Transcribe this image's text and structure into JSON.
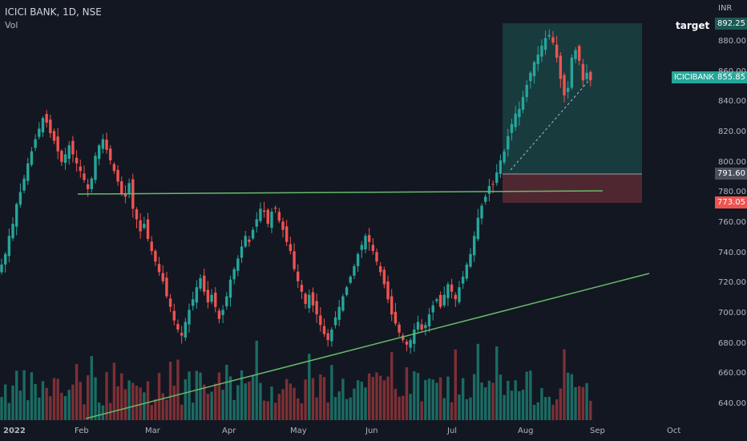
{
  "header": {
    "title": "ICICI BANK, 1D, NSE",
    "volume_label": "Vol"
  },
  "annotations": {
    "target_label": "target",
    "symbol_badge": "ICICIBANK"
  },
  "price_labels": {
    "last": "855.85",
    "target": "892.25",
    "entry": "791.60",
    "stop": "773.05"
  },
  "axis": {
    "currency": "INR",
    "y_ticks": [
      "880.00",
      "860.00",
      "840.00",
      "820.00",
      "800.00",
      "780.00",
      "760.00",
      "740.00",
      "720.00",
      "700.00",
      "680.00",
      "660.00",
      "640.00"
    ],
    "x_ticks": [
      "2022",
      "Feb",
      "Mar",
      "Apr",
      "May",
      "Jun",
      "Jul",
      "Aug",
      "Sep",
      "Oct"
    ]
  },
  "colors": {
    "up": "#26a69a",
    "down": "#ef5350",
    "up_volume": "#1b6b63",
    "down_volume": "#7d3035",
    "trendline": "#66bb6a",
    "target_zone": "#1d5a55",
    "stop_zone": "#5b2a34",
    "background": "#131722"
  },
  "chart_data": {
    "type": "candlestick",
    "title": "ICICI BANK, 1D, NSE",
    "y_unit": "INR",
    "ylim": [
      627,
      898
    ],
    "x_ticks": [
      "2022",
      "Feb",
      "Mar",
      "Apr",
      "May",
      "Jun",
      "Jul",
      "Aug",
      "Sep",
      "Oct"
    ],
    "trend_segments": [
      {
        "name": "horizontal-resistance",
        "from": [
          "Feb",
          778
        ],
        "to": [
          "Aug-end",
          780
        ]
      },
      {
        "name": "rising-support",
        "from": [
          "Feb",
          627
        ],
        "to": [
          "Sep-end",
          725
        ]
      }
    ],
    "long_position": {
      "entry": 791.6,
      "target": 892.25,
      "stop": 773.05,
      "last": 855.85
    },
    "closes": [
      733,
      740,
      752,
      760,
      773,
      781,
      790,
      800,
      808,
      816,
      823,
      830,
      827,
      820,
      815,
      808,
      801,
      806,
      812,
      806,
      800,
      795,
      789,
      783,
      790,
      805,
      812,
      816,
      809,
      802,
      795,
      788,
      780,
      778,
      787,
      770,
      763,
      755,
      760,
      750,
      742,
      735,
      728,
      722,
      712,
      705,
      696,
      690,
      686,
      695,
      703,
      710,
      718,
      724,
      715,
      708,
      713,
      705,
      697,
      703,
      712,
      723,
      730,
      737,
      745,
      752,
      748,
      756,
      763,
      770,
      768,
      760,
      768,
      770,
      762,
      756,
      748,
      742,
      730,
      722,
      715,
      707,
      713,
      706,
      700,
      693,
      687,
      683,
      690,
      698,
      705,
      712,
      718,
      725,
      732,
      740,
      746,
      752,
      748,
      742,
      735,
      728,
      720,
      710,
      700,
      694,
      688,
      683,
      680,
      683,
      690,
      695,
      690,
      693,
      700,
      706,
      710,
      705,
      713,
      720,
      715,
      710,
      718,
      725,
      733,
      740,
      752,
      764,
      772,
      778,
      785,
      786,
      794,
      802,
      808,
      818,
      826,
      833,
      836,
      844,
      852,
      860,
      867,
      872,
      878,
      883,
      885,
      880,
      870,
      856,
      845,
      850,
      870,
      875,
      868,
      855,
      860,
      855
    ]
  }
}
